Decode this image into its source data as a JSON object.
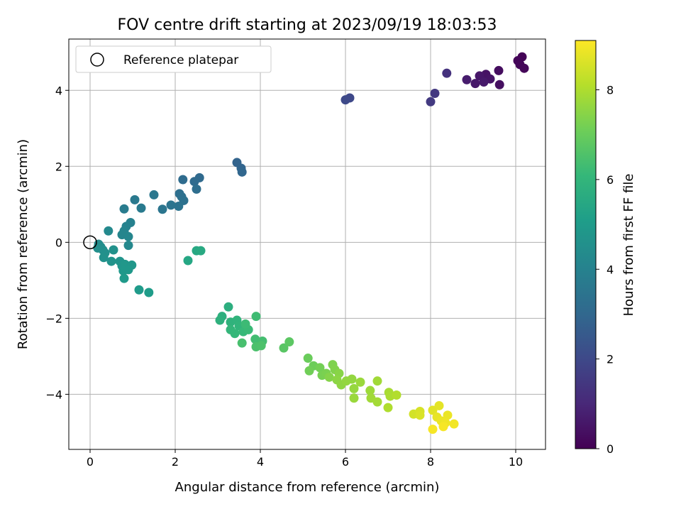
{
  "chart_data": {
    "type": "scatter",
    "title": "FOV centre drift starting at 2023/09/19 18:03:53",
    "xlabel": "Angular distance from reference (arcmin)",
    "ylabel": "Rotation from reference (arcmin)",
    "xlim": [
      -0.5,
      10.7
    ],
    "ylim": [
      -5.45,
      5.35
    ],
    "xticks": [
      0,
      2,
      4,
      6,
      8,
      10
    ],
    "yticks": [
      -4,
      -2,
      0,
      2,
      4
    ],
    "grid": true,
    "legend": {
      "placement": "top-left",
      "entries": [
        "Reference platepar"
      ]
    },
    "reference_point": {
      "x": 0,
      "y": 0
    },
    "colorbar": {
      "label": "Hours from first FF file",
      "range": [
        0,
        9.1
      ],
      "ticks": [
        0,
        2,
        4,
        6,
        8
      ],
      "colormap": "viridis",
      "stops": [
        "#440154",
        "#482878",
        "#3e4989",
        "#31688e",
        "#26828e",
        "#1f9e89",
        "#35b779",
        "#6ece58",
        "#b5de2b",
        "#fde725"
      ]
    },
    "points": [
      {
        "x": 10.15,
        "y": 4.88,
        "t": 0.05
      },
      {
        "x": 10.05,
        "y": 4.78,
        "t": 0.1
      },
      {
        "x": 10.1,
        "y": 4.68,
        "t": 0.12
      },
      {
        "x": 10.2,
        "y": 4.58,
        "t": 0.15
      },
      {
        "x": 9.6,
        "y": 4.52,
        "t": 0.3
      },
      {
        "x": 9.62,
        "y": 4.15,
        "t": 0.35
      },
      {
        "x": 9.3,
        "y": 4.42,
        "t": 0.45
      },
      {
        "x": 9.4,
        "y": 4.3,
        "t": 0.5
      },
      {
        "x": 9.15,
        "y": 4.38,
        "t": 0.55
      },
      {
        "x": 9.05,
        "y": 4.18,
        "t": 0.6
      },
      {
        "x": 9.25,
        "y": 4.22,
        "t": 0.62
      },
      {
        "x": 8.85,
        "y": 4.28,
        "t": 0.7
      },
      {
        "x": 8.38,
        "y": 4.45,
        "t": 1.3
      },
      {
        "x": 8.1,
        "y": 3.92,
        "t": 1.5
      },
      {
        "x": 8.0,
        "y": 3.7,
        "t": 1.55
      },
      {
        "x": 6.1,
        "y": 3.8,
        "t": 2.0
      },
      {
        "x": 6.0,
        "y": 3.75,
        "t": 2.05
      },
      {
        "x": 3.45,
        "y": 2.1,
        "t": 2.9
      },
      {
        "x": 3.55,
        "y": 1.95,
        "t": 2.95
      },
      {
        "x": 3.57,
        "y": 1.85,
        "t": 3.0
      },
      {
        "x": 2.57,
        "y": 1.7,
        "t": 3.1
      },
      {
        "x": 2.45,
        "y": 1.6,
        "t": 3.15
      },
      {
        "x": 2.18,
        "y": 1.65,
        "t": 3.2
      },
      {
        "x": 2.5,
        "y": 1.4,
        "t": 3.25
      },
      {
        "x": 2.1,
        "y": 1.28,
        "t": 3.3
      },
      {
        "x": 2.15,
        "y": 1.2,
        "t": 3.35
      },
      {
        "x": 2.2,
        "y": 1.1,
        "t": 3.4
      },
      {
        "x": 2.08,
        "y": 0.95,
        "t": 3.45
      },
      {
        "x": 1.9,
        "y": 0.98,
        "t": 3.5
      },
      {
        "x": 1.7,
        "y": 0.87,
        "t": 3.55
      },
      {
        "x": 1.5,
        "y": 1.25,
        "t": 3.6
      },
      {
        "x": 1.05,
        "y": 1.12,
        "t": 3.7
      },
      {
        "x": 1.2,
        "y": 0.9,
        "t": 3.75
      },
      {
        "x": 0.8,
        "y": 0.88,
        "t": 3.8
      },
      {
        "x": 0.95,
        "y": 0.52,
        "t": 4.0
      },
      {
        "x": 0.85,
        "y": 0.42,
        "t": 4.05
      },
      {
        "x": 0.8,
        "y": 0.3,
        "t": 4.1
      },
      {
        "x": 0.75,
        "y": 0.2,
        "t": 4.15
      },
      {
        "x": 0.9,
        "y": 0.15,
        "t": 4.2
      },
      {
        "x": 0.9,
        "y": -0.08,
        "t": 4.25
      },
      {
        "x": 0.43,
        "y": 0.3,
        "t": 4.3
      },
      {
        "x": 0.2,
        "y": -0.05,
        "t": 4.4
      },
      {
        "x": 0.25,
        "y": -0.12,
        "t": 4.45
      },
      {
        "x": 0.18,
        "y": -0.15,
        "t": 4.5
      },
      {
        "x": 0.3,
        "y": -0.2,
        "t": 4.5
      },
      {
        "x": 0.35,
        "y": -0.28,
        "t": 4.55
      },
      {
        "x": 0.32,
        "y": -0.4,
        "t": 4.6
      },
      {
        "x": 0.55,
        "y": -0.2,
        "t": 4.6
      },
      {
        "x": 0.5,
        "y": -0.5,
        "t": 4.65
      },
      {
        "x": 0.7,
        "y": -0.5,
        "t": 4.7
      },
      {
        "x": 0.75,
        "y": -0.62,
        "t": 4.75
      },
      {
        "x": 0.82,
        "y": -0.58,
        "t": 4.8
      },
      {
        "x": 0.98,
        "y": -0.6,
        "t": 4.8
      },
      {
        "x": 0.78,
        "y": -0.75,
        "t": 4.85
      },
      {
        "x": 0.9,
        "y": -0.72,
        "t": 4.85
      },
      {
        "x": 0.8,
        "y": -0.95,
        "t": 4.9
      },
      {
        "x": 1.15,
        "y": -1.25,
        "t": 4.95
      },
      {
        "x": 1.38,
        "y": -1.32,
        "t": 5.0
      },
      {
        "x": 2.3,
        "y": -0.48,
        "t": 5.4
      },
      {
        "x": 2.5,
        "y": -0.22,
        "t": 5.45
      },
      {
        "x": 2.6,
        "y": -0.22,
        "t": 5.5
      },
      {
        "x": 3.25,
        "y": -1.7,
        "t": 5.7
      },
      {
        "x": 3.1,
        "y": -1.95,
        "t": 5.75
      },
      {
        "x": 3.05,
        "y": -2.05,
        "t": 5.8
      },
      {
        "x": 3.3,
        "y": -2.1,
        "t": 5.85
      },
      {
        "x": 3.45,
        "y": -2.05,
        "t": 5.9
      },
      {
        "x": 3.5,
        "y": -2.2,
        "t": 5.95
      },
      {
        "x": 3.3,
        "y": -2.3,
        "t": 6.0
      },
      {
        "x": 3.4,
        "y": -2.4,
        "t": 6.05
      },
      {
        "x": 3.6,
        "y": -2.35,
        "t": 6.1
      },
      {
        "x": 3.72,
        "y": -2.3,
        "t": 6.15
      },
      {
        "x": 3.65,
        "y": -2.15,
        "t": 6.2
      },
      {
        "x": 3.9,
        "y": -1.95,
        "t": 6.25
      },
      {
        "x": 3.88,
        "y": -2.55,
        "t": 6.3
      },
      {
        "x": 4.05,
        "y": -2.6,
        "t": 6.35
      },
      {
        "x": 3.57,
        "y": -2.65,
        "t": 6.4
      },
      {
        "x": 3.9,
        "y": -2.75,
        "t": 6.45
      },
      {
        "x": 4.02,
        "y": -2.72,
        "t": 6.5
      },
      {
        "x": 4.55,
        "y": -2.78,
        "t": 6.7
      },
      {
        "x": 4.68,
        "y": -2.62,
        "t": 6.75
      },
      {
        "x": 5.12,
        "y": -3.05,
        "t": 7.0
      },
      {
        "x": 5.25,
        "y": -3.25,
        "t": 7.05
      },
      {
        "x": 5.15,
        "y": -3.38,
        "t": 7.1
      },
      {
        "x": 5.4,
        "y": -3.3,
        "t": 7.15
      },
      {
        "x": 5.45,
        "y": -3.5,
        "t": 7.2
      },
      {
        "x": 5.55,
        "y": -3.45,
        "t": 7.25
      },
      {
        "x": 5.7,
        "y": -3.22,
        "t": 7.3
      },
      {
        "x": 5.75,
        "y": -3.35,
        "t": 7.35
      },
      {
        "x": 5.62,
        "y": -3.55,
        "t": 7.4
      },
      {
        "x": 5.85,
        "y": -3.45,
        "t": 7.45
      },
      {
        "x": 5.8,
        "y": -3.62,
        "t": 7.5
      },
      {
        "x": 5.9,
        "y": -3.75,
        "t": 7.55
      },
      {
        "x": 6.02,
        "y": -3.65,
        "t": 7.6
      },
      {
        "x": 6.15,
        "y": -3.6,
        "t": 7.6
      },
      {
        "x": 6.2,
        "y": -3.85,
        "t": 7.65
      },
      {
        "x": 6.2,
        "y": -4.1,
        "t": 7.7
      },
      {
        "x": 6.35,
        "y": -3.68,
        "t": 7.7
      },
      {
        "x": 6.58,
        "y": -3.9,
        "t": 7.75
      },
      {
        "x": 6.6,
        "y": -4.1,
        "t": 7.8
      },
      {
        "x": 6.75,
        "y": -3.65,
        "t": 7.8
      },
      {
        "x": 6.75,
        "y": -4.2,
        "t": 7.85
      },
      {
        "x": 7.02,
        "y": -3.95,
        "t": 7.9
      },
      {
        "x": 7.05,
        "y": -4.05,
        "t": 7.95
      },
      {
        "x": 7.0,
        "y": -4.35,
        "t": 8.0
      },
      {
        "x": 7.2,
        "y": -4.02,
        "t": 8.05
      },
      {
        "x": 7.6,
        "y": -4.52,
        "t": 8.5
      },
      {
        "x": 7.75,
        "y": -4.45,
        "t": 8.55
      },
      {
        "x": 7.75,
        "y": -4.55,
        "t": 8.6
      },
      {
        "x": 8.05,
        "y": -4.42,
        "t": 8.7
      },
      {
        "x": 8.2,
        "y": -4.3,
        "t": 8.75
      },
      {
        "x": 8.15,
        "y": -4.6,
        "t": 8.8
      },
      {
        "x": 8.25,
        "y": -4.7,
        "t": 8.85
      },
      {
        "x": 8.4,
        "y": -4.55,
        "t": 8.85
      },
      {
        "x": 8.35,
        "y": -4.75,
        "t": 8.9
      },
      {
        "x": 8.55,
        "y": -4.78,
        "t": 8.95
      },
      {
        "x": 8.3,
        "y": -4.85,
        "t": 9.0
      },
      {
        "x": 8.05,
        "y": -4.92,
        "t": 9.0
      }
    ]
  }
}
